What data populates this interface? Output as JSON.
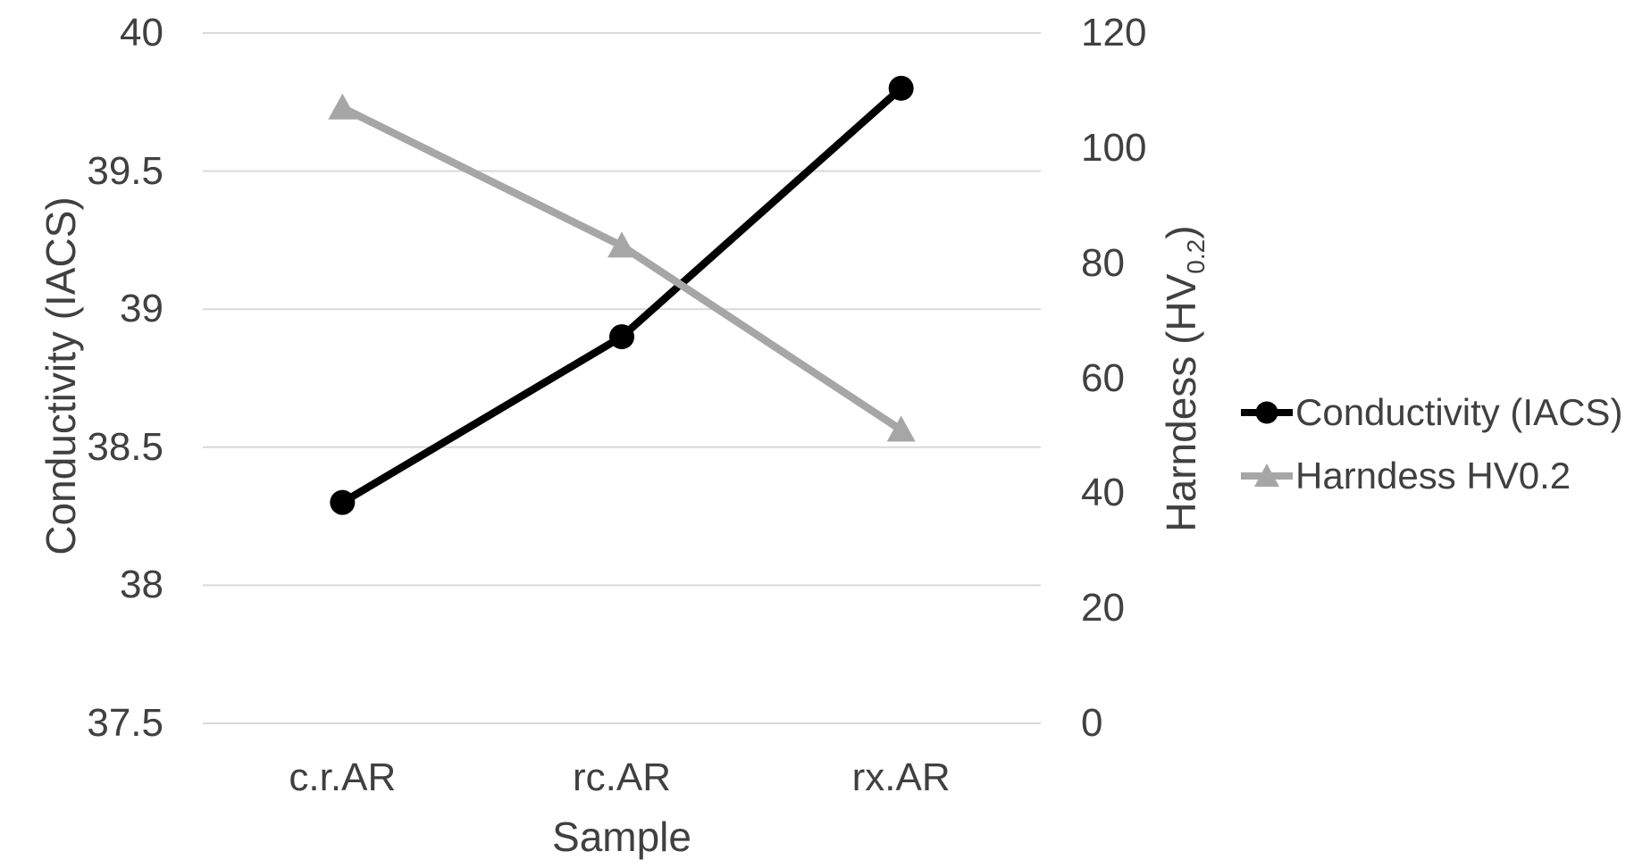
{
  "chart_data": {
    "type": "line",
    "categories": [
      "c.r.AR",
      "rc.AR",
      "rx.AR"
    ],
    "series": [
      {
        "name": "Conductivity (IACS)",
        "values": [
          38.3,
          38.9,
          39.8
        ],
        "axis": "left",
        "color": "#000000",
        "marker": "circle"
      },
      {
        "name": "Harndess HV0.2",
        "values": [
          107,
          83,
          51
        ],
        "axis": "right",
        "color": "#a6a6a6",
        "marker": "triangle"
      }
    ],
    "xlabel": "Sample",
    "left_axis": {
      "title": "Conductivity (IACS)",
      "min": 37.5,
      "max": 40,
      "step": 0.5,
      "ticks": [
        "40",
        "39.5",
        "39",
        "38.5",
        "38",
        "37.5"
      ]
    },
    "right_axis": {
      "title_prefix": "Harndess (HV",
      "title_sub": "0.2",
      "title_suffix": ")",
      "min": 0,
      "max": 120,
      "step": 20,
      "ticks": [
        "120",
        "100",
        "80",
        "60",
        "40",
        "20",
        "0"
      ]
    },
    "legend": [
      {
        "label": "Conductivity (IACS)",
        "marker": "circle",
        "color": "#000000"
      },
      {
        "label": "Harndess HV0.2",
        "marker": "triangle",
        "color": "#a6a6a6"
      }
    ],
    "grid": true,
    "legend_position": "right"
  },
  "colors": {
    "background": "#ffffff",
    "text": "#404040",
    "gridline": "#d9d9d9",
    "series_conductivity": "#000000",
    "series_hardness": "#a6a6a6"
  }
}
